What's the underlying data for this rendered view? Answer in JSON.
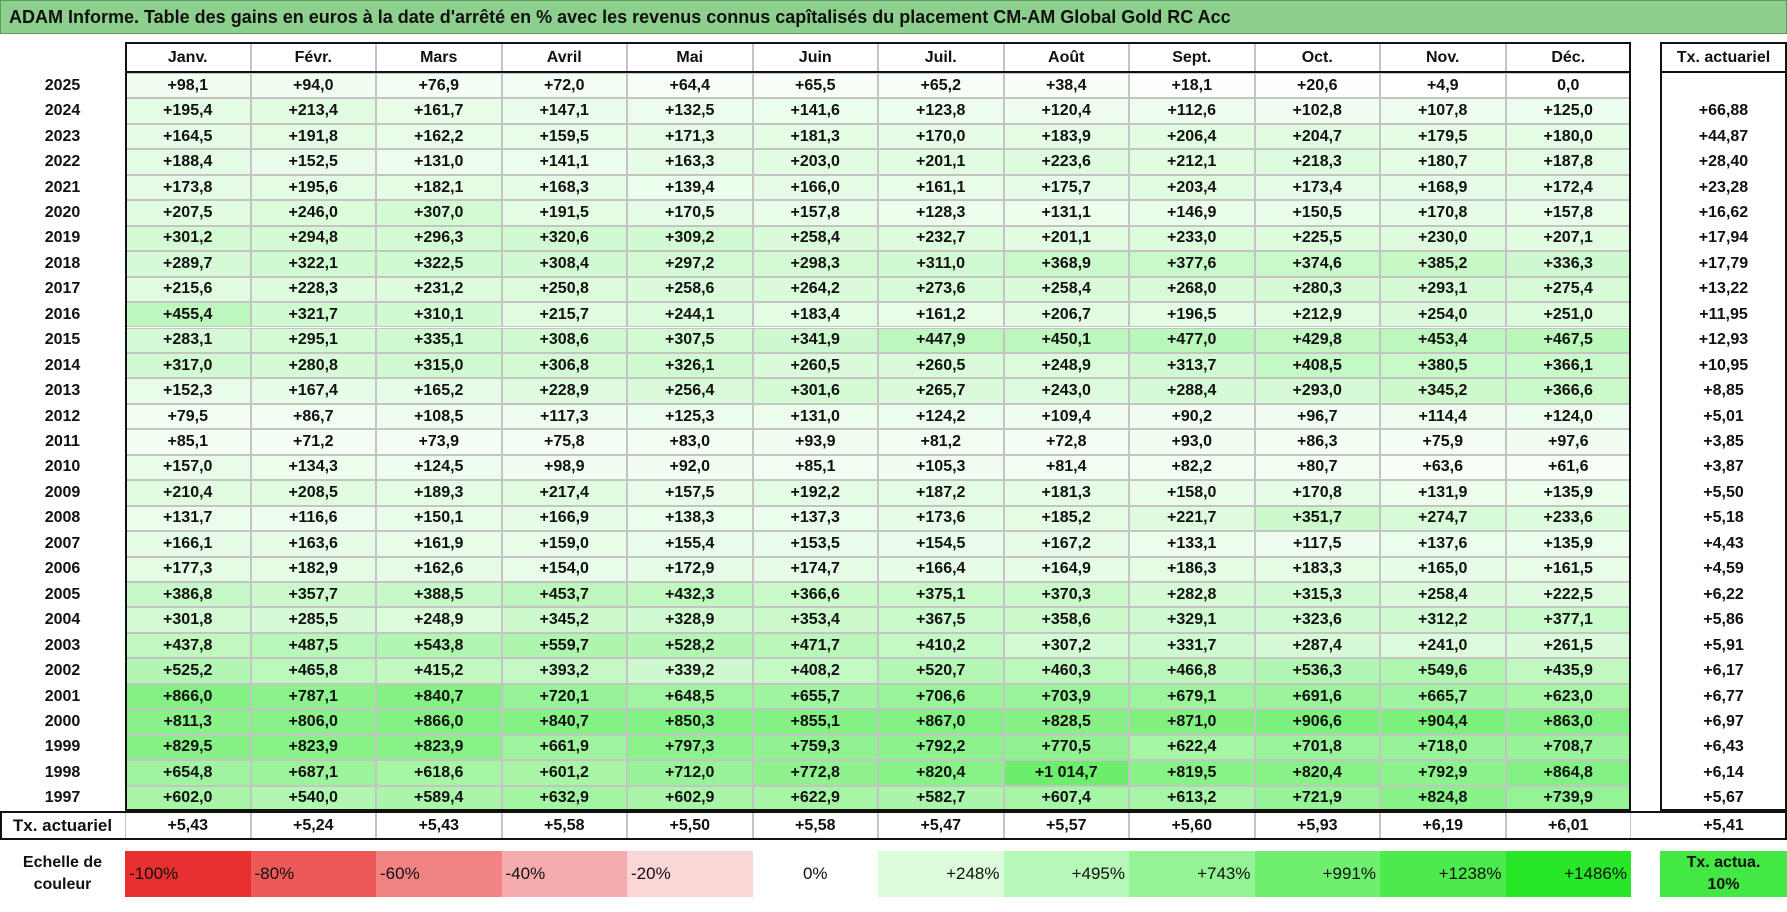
{
  "title": "ADAM Informe. Table des gains en euros à la date d'arrêté en % avec les revenus connus capîtalisés du placement CM-AM Global Gold RC Acc",
  "table": {
    "header": [
      "Janv.",
      "Févr.",
      "Mars",
      "Avril",
      "Mai",
      "Juin",
      "Juil.",
      "Août",
      "Sept.",
      "Oct.",
      "Nov.",
      "Déc."
    ],
    "tx_header": "Tx. actuariel",
    "rows": [
      {
        "year": "2025",
        "values": [
          "+98,1",
          "+94,0",
          "+76,9",
          "+72,0",
          "+64,4",
          "+65,5",
          "+65,2",
          "+38,4",
          "+18,1",
          "+20,6",
          "+4,9",
          "0,0"
        ]
      },
      {
        "year": "2024",
        "values": [
          "+195,4",
          "+213,4",
          "+161,7",
          "+147,1",
          "+132,5",
          "+141,6",
          "+123,8",
          "+120,4",
          "+112,6",
          "+102,8",
          "+107,8",
          "+125,0"
        ],
        "tx": "+66,88"
      },
      {
        "year": "2023",
        "values": [
          "+164,5",
          "+191,8",
          "+162,2",
          "+159,5",
          "+171,3",
          "+181,3",
          "+170,0",
          "+183,9",
          "+206,4",
          "+204,7",
          "+179,5",
          "+180,0"
        ],
        "tx": "+44,87"
      },
      {
        "year": "2022",
        "values": [
          "+188,4",
          "+152,5",
          "+131,0",
          "+141,1",
          "+163,3",
          "+203,0",
          "+201,1",
          "+223,6",
          "+212,1",
          "+218,3",
          "+180,7",
          "+187,8"
        ],
        "tx": "+28,40"
      },
      {
        "year": "2021",
        "values": [
          "+173,8",
          "+195,6",
          "+182,1",
          "+168,3",
          "+139,4",
          "+166,0",
          "+161,1",
          "+175,7",
          "+203,4",
          "+173,4",
          "+168,9",
          "+172,4"
        ],
        "tx": "+23,28"
      },
      {
        "year": "2020",
        "values": [
          "+207,5",
          "+246,0",
          "+307,0",
          "+191,5",
          "+170,5",
          "+157,8",
          "+128,3",
          "+131,1",
          "+146,9",
          "+150,5",
          "+170,8",
          "+157,8"
        ],
        "tx": "+16,62"
      },
      {
        "year": "2019",
        "values": [
          "+301,2",
          "+294,8",
          "+296,3",
          "+320,6",
          "+309,2",
          "+258,4",
          "+232,7",
          "+201,1",
          "+233,0",
          "+225,5",
          "+230,0",
          "+207,1"
        ],
        "tx": "+17,94"
      },
      {
        "year": "2018",
        "values": [
          "+289,7",
          "+322,1",
          "+322,5",
          "+308,4",
          "+297,2",
          "+298,3",
          "+311,0",
          "+368,9",
          "+377,6",
          "+374,6",
          "+385,2",
          "+336,3"
        ],
        "tx": "+17,79"
      },
      {
        "year": "2017",
        "values": [
          "+215,6",
          "+228,3",
          "+231,2",
          "+250,8",
          "+258,6",
          "+264,2",
          "+273,6",
          "+258,4",
          "+268,0",
          "+280,3",
          "+293,1",
          "+275,4"
        ],
        "tx": "+13,22"
      },
      {
        "year": "2016",
        "values": [
          "+455,4",
          "+321,7",
          "+310,1",
          "+215,7",
          "+244,1",
          "+183,4",
          "+161,2",
          "+206,7",
          "+196,5",
          "+212,9",
          "+254,0",
          "+251,0"
        ],
        "tx": "+11,95"
      },
      {
        "year": "2015",
        "values": [
          "+283,1",
          "+295,1",
          "+335,1",
          "+308,6",
          "+307,5",
          "+341,9",
          "+447,9",
          "+450,1",
          "+477,0",
          "+429,8",
          "+453,4",
          "+467,5"
        ],
        "tx": "+12,93"
      },
      {
        "year": "2014",
        "values": [
          "+317,0",
          "+280,8",
          "+315,0",
          "+306,8",
          "+326,1",
          "+260,5",
          "+260,5",
          "+248,9",
          "+313,7",
          "+408,5",
          "+380,5",
          "+366,1"
        ],
        "tx": "+10,95"
      },
      {
        "year": "2013",
        "values": [
          "+152,3",
          "+167,4",
          "+165,2",
          "+228,9",
          "+256,4",
          "+301,6",
          "+265,7",
          "+243,0",
          "+288,4",
          "+293,0",
          "+345,2",
          "+366,6"
        ],
        "tx": "+8,85"
      },
      {
        "year": "2012",
        "values": [
          "+79,5",
          "+86,7",
          "+108,5",
          "+117,3",
          "+125,3",
          "+131,0",
          "+124,2",
          "+109,4",
          "+90,2",
          "+96,7",
          "+114,4",
          "+124,0"
        ],
        "tx": "+5,01"
      },
      {
        "year": "2011",
        "values": [
          "+85,1",
          "+71,2",
          "+73,9",
          "+75,8",
          "+83,0",
          "+93,9",
          "+81,2",
          "+72,8",
          "+93,0",
          "+86,3",
          "+75,9",
          "+97,6"
        ],
        "tx": "+3,85"
      },
      {
        "year": "2010",
        "values": [
          "+157,0",
          "+134,3",
          "+124,5",
          "+98,9",
          "+92,0",
          "+85,1",
          "+105,3",
          "+81,4",
          "+82,2",
          "+80,7",
          "+63,6",
          "+61,6"
        ],
        "tx": "+3,87"
      },
      {
        "year": "2009",
        "values": [
          "+210,4",
          "+208,5",
          "+189,3",
          "+217,4",
          "+157,5",
          "+192,2",
          "+187,2",
          "+181,3",
          "+158,0",
          "+170,8",
          "+131,9",
          "+135,9"
        ],
        "tx": "+5,50"
      },
      {
        "year": "2008",
        "values": [
          "+131,7",
          "+116,6",
          "+150,1",
          "+166,9",
          "+138,3",
          "+137,3",
          "+173,6",
          "+185,2",
          "+221,7",
          "+351,7",
          "+274,7",
          "+233,6"
        ],
        "tx": "+5,18"
      },
      {
        "year": "2007",
        "values": [
          "+166,1",
          "+163,6",
          "+161,9",
          "+159,0",
          "+155,4",
          "+153,5",
          "+154,5",
          "+167,2",
          "+133,1",
          "+117,5",
          "+137,6",
          "+135,9"
        ],
        "tx": "+4,43"
      },
      {
        "year": "2006",
        "values": [
          "+177,3",
          "+182,9",
          "+162,6",
          "+154,0",
          "+172,9",
          "+174,7",
          "+166,4",
          "+164,9",
          "+186,3",
          "+183,3",
          "+165,0",
          "+161,5"
        ],
        "tx": "+4,59"
      },
      {
        "year": "2005",
        "values": [
          "+386,8",
          "+357,7",
          "+388,5",
          "+453,7",
          "+432,3",
          "+366,6",
          "+375,1",
          "+370,3",
          "+282,8",
          "+315,3",
          "+258,4",
          "+222,5"
        ],
        "tx": "+6,22"
      },
      {
        "year": "2004",
        "values": [
          "+301,8",
          "+285,5",
          "+248,9",
          "+345,2",
          "+328,9",
          "+353,4",
          "+367,5",
          "+358,6",
          "+329,1",
          "+323,6",
          "+312,2",
          "+377,1"
        ],
        "tx": "+5,86"
      },
      {
        "year": "2003",
        "values": [
          "+437,8",
          "+487,5",
          "+543,8",
          "+559,7",
          "+528,2",
          "+471,7",
          "+410,2",
          "+307,2",
          "+331,7",
          "+287,4",
          "+241,0",
          "+261,5"
        ],
        "tx": "+5,91"
      },
      {
        "year": "2002",
        "values": [
          "+525,2",
          "+465,8",
          "+415,2",
          "+393,2",
          "+339,2",
          "+408,2",
          "+520,7",
          "+460,3",
          "+466,8",
          "+536,3",
          "+549,6",
          "+435,9"
        ],
        "tx": "+6,17"
      },
      {
        "year": "2001",
        "values": [
          "+866,0",
          "+787,1",
          "+840,7",
          "+720,1",
          "+648,5",
          "+655,7",
          "+706,6",
          "+703,9",
          "+679,1",
          "+691,6",
          "+665,7",
          "+623,0"
        ],
        "tx": "+6,77"
      },
      {
        "year": "2000",
        "values": [
          "+811,3",
          "+806,0",
          "+866,0",
          "+840,7",
          "+850,3",
          "+855,1",
          "+867,0",
          "+828,5",
          "+871,0",
          "+906,6",
          "+904,4",
          "+863,0"
        ],
        "tx": "+6,97"
      },
      {
        "year": "1999",
        "values": [
          "+829,5",
          "+823,9",
          "+823,9",
          "+661,9",
          "+797,3",
          "+759,3",
          "+792,2",
          "+770,5",
          "+622,4",
          "+701,8",
          "+718,0",
          "+708,7"
        ],
        "tx": "+6,43"
      },
      {
        "year": "1998",
        "values": [
          "+654,8",
          "+687,1",
          "+618,6",
          "+601,2",
          "+712,0",
          "+772,8",
          "+820,4",
          "+1 014,7",
          "+819,5",
          "+820,4",
          "+792,9",
          "+864,8"
        ],
        "tx": "+6,14"
      },
      {
        "year": "1997",
        "values": [
          "+602,0",
          "+540,0",
          "+589,4",
          "+632,9",
          "+602,9",
          "+622,9",
          "+582,7",
          "+607,4",
          "+613,2",
          "+721,9",
          "+824,8",
          "+739,9"
        ],
        "tx": "+5,67"
      }
    ],
    "footer": {
      "label": "Tx. actuariel",
      "values": [
        "+5,43",
        "+5,24",
        "+5,43",
        "+5,58",
        "+5,50",
        "+5,58",
        "+5,47",
        "+5,57",
        "+5,60",
        "+5,93",
        "+6,19",
        "+6,01"
      ],
      "tx": "+5,41"
    }
  },
  "legend": {
    "label": "Echelle de couleur",
    "steps": [
      "-100%",
      "-80%",
      "-60%",
      "-40%",
      "-20%",
      "0%",
      "+248%",
      "+495%",
      "+743%",
      "+991%",
      "+1238%",
      "+1486%"
    ],
    "tx_label": "Tx. actua. 10%"
  }
}
